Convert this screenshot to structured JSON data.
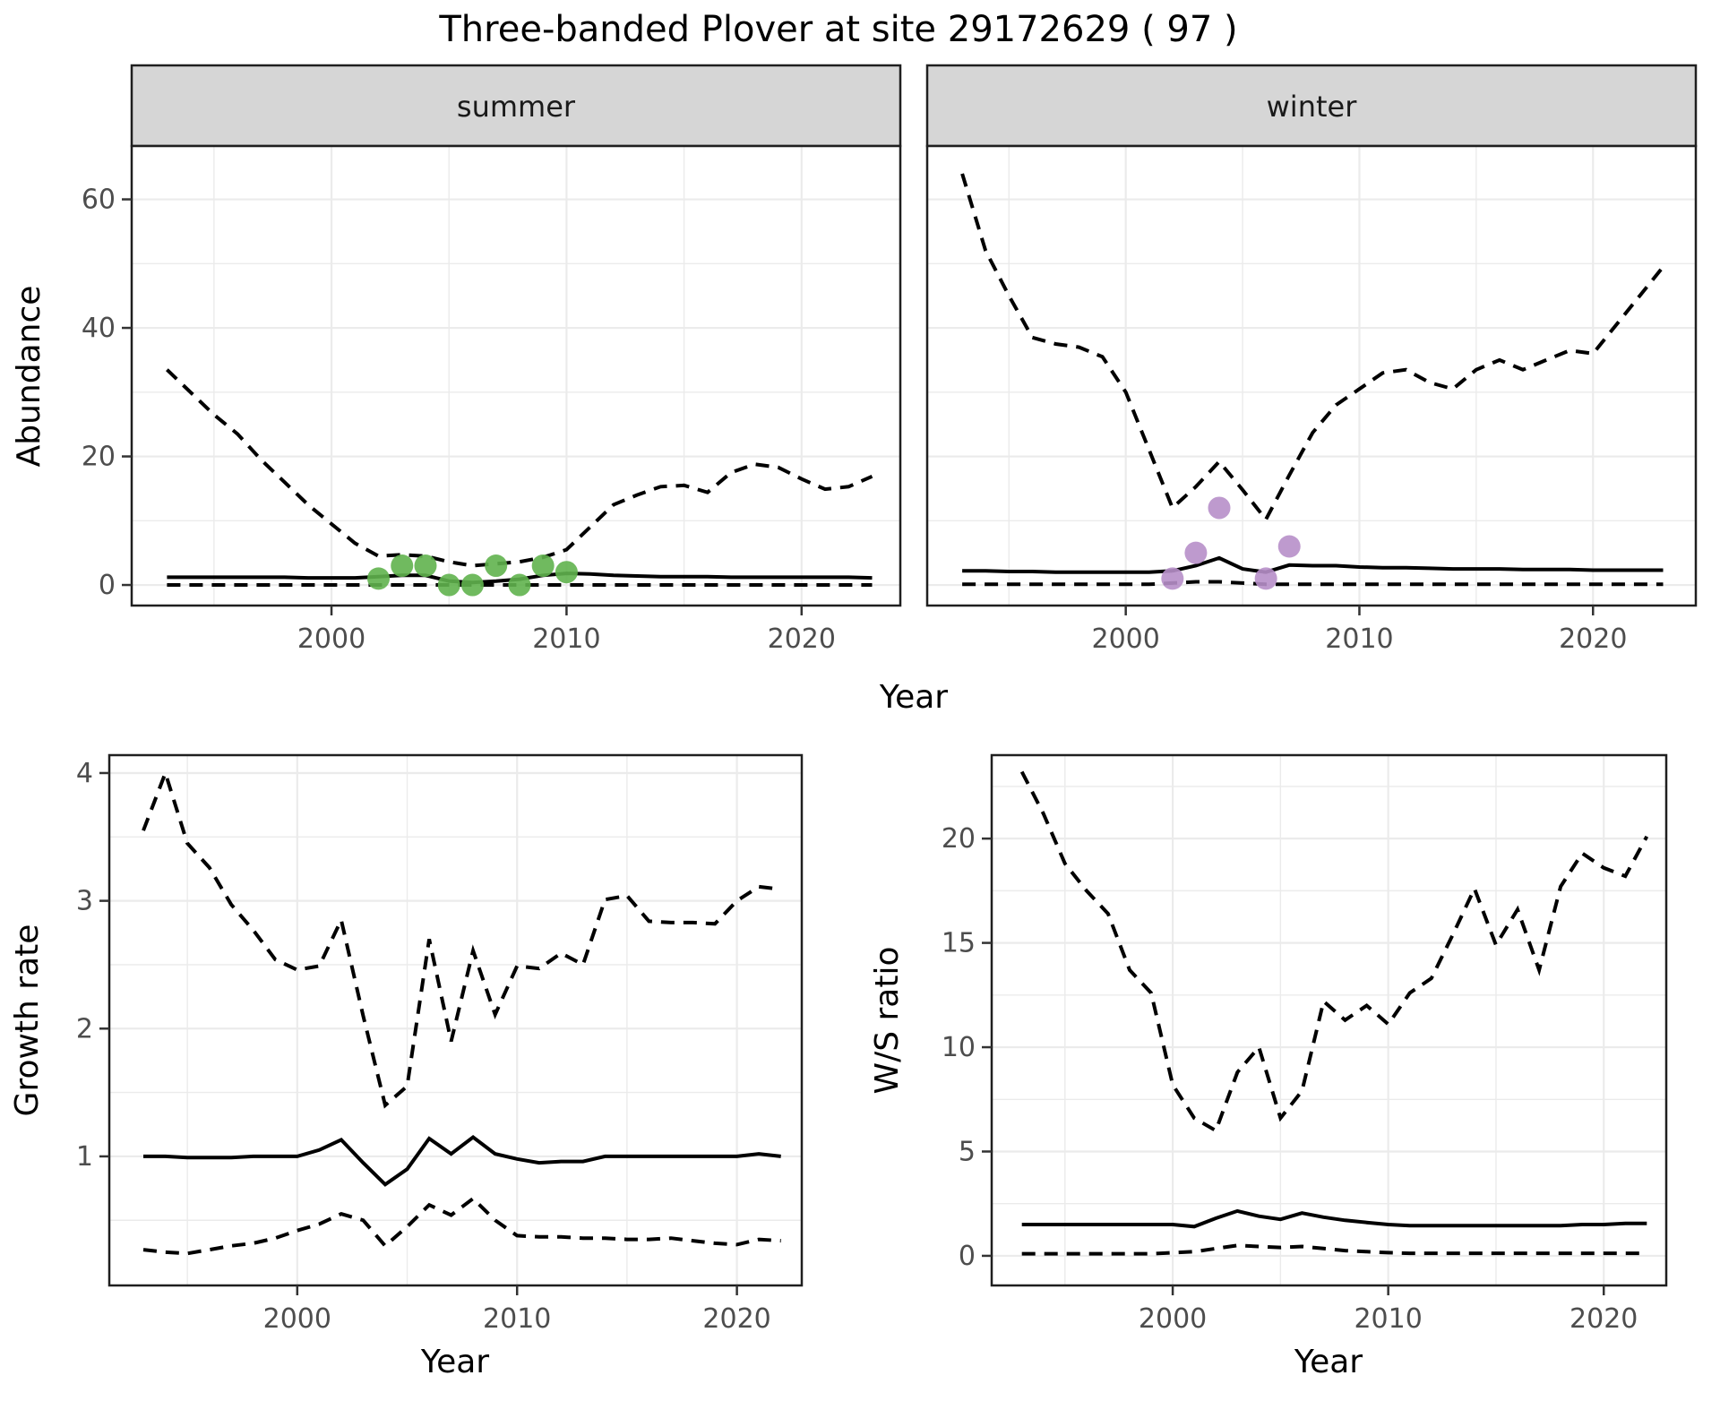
{
  "title": "Three-banded Plover at site 29172629 ( 97 )",
  "facets": {
    "summer_label": "summer",
    "winter_label": "winter"
  },
  "axis_titles": {
    "abundance": "Abundance",
    "year": "Year",
    "growth_rate": "Growth rate",
    "ws_ratio": "W/S ratio"
  },
  "colors": {
    "summer_point": "#61b24e",
    "winter_point": "#b78fc9",
    "line": "#000000",
    "grid": "#ebebeb",
    "strip_bg": "#d6d6d6",
    "strip_border": "#1f1f1f",
    "panel_border": "#1f1f1f",
    "axis_text": "#4d4d4d",
    "tick_mark": "#333333"
  },
  "chart_data": [
    {
      "id": "abundance-summer",
      "type": "line",
      "facet": "summer",
      "xlabel": "Year",
      "ylabel": "Abundance",
      "x": [
        1993,
        1994,
        1995,
        1996,
        1997,
        1998,
        1999,
        2000,
        2001,
        2002,
        2003,
        2004,
        2005,
        2006,
        2007,
        2008,
        2009,
        2010,
        2011,
        2012,
        2013,
        2014,
        2015,
        2016,
        2017,
        2018,
        2019,
        2020,
        2021,
        2022,
        2023
      ],
      "series": [
        {
          "name": "upper_95ci",
          "style": "dashed",
          "values": [
            33.5,
            30,
            26.5,
            23.5,
            19.5,
            16,
            12.5,
            9.5,
            6.5,
            4.5,
            4.7,
            4.5,
            3.6,
            3.0,
            3.3,
            3.6,
            4.3,
            5.5,
            9,
            12.5,
            14,
            15.3,
            15.5,
            14.4,
            17.5,
            18.8,
            18.3,
            16.5,
            14.9,
            15.3,
            16.9
          ]
        },
        {
          "name": "median",
          "style": "solid",
          "values": [
            1.2,
            1.2,
            1.2,
            1.2,
            1.2,
            1.2,
            1.1,
            1.1,
            1.1,
            1.3,
            1.5,
            1.5,
            0.6,
            0.4,
            0.6,
            0.9,
            1.5,
            1.8,
            1.7,
            1.5,
            1.4,
            1.3,
            1.3,
            1.3,
            1.2,
            1.2,
            1.2,
            1.2,
            1.2,
            1.2,
            1.1
          ]
        },
        {
          "name": "lower_95ci",
          "style": "dashed",
          "values": [
            0,
            0,
            0,
            0,
            0,
            0,
            0,
            0,
            0,
            0,
            0,
            0,
            0,
            0,
            0,
            0,
            0,
            0,
            0,
            0,
            0,
            0,
            0,
            0,
            0,
            0,
            0,
            0,
            0,
            0,
            0
          ]
        }
      ],
      "points": {
        "name": "observed-counts-summer",
        "color_key": "summer_point",
        "data": [
          [
            2002,
            1
          ],
          [
            2003,
            3
          ],
          [
            2004,
            3
          ],
          [
            2005,
            0
          ],
          [
            2006,
            0
          ],
          [
            2007,
            3
          ],
          [
            2008,
            0
          ],
          [
            2009,
            3
          ],
          [
            2010,
            2
          ]
        ]
      },
      "xlim": [
        1991.5,
        2024.2
      ],
      "ylim": [
        -3.2,
        68.3
      ],
      "xticks": [
        2000,
        2010,
        2020
      ],
      "xtick_labels": [
        "2000",
        "2010",
        "2020"
      ],
      "xminor": [
        1995,
        2005,
        2015
      ],
      "yticks": [
        0,
        20,
        40,
        60
      ],
      "ytick_labels": [
        "0",
        "20",
        "40",
        "60"
      ],
      "yminor": [
        10,
        30,
        50
      ],
      "show_y_tick_labels": true
    },
    {
      "id": "abundance-winter",
      "type": "line",
      "facet": "winter",
      "xlabel": "Year",
      "ylabel": "Abundance",
      "x": [
        1993,
        1994,
        1995,
        1996,
        1997,
        1998,
        1999,
        2000,
        2001,
        2002,
        2003,
        2004,
        2005,
        2006,
        2007,
        2008,
        2009,
        2010,
        2011,
        2012,
        2013,
        2014,
        2015,
        2016,
        2017,
        2018,
        2019,
        2020,
        2021,
        2022,
        2023
      ],
      "series": [
        {
          "name": "upper_95ci",
          "style": "dashed",
          "values": [
            64,
            52,
            45,
            38.5,
            37.5,
            37,
            35.5,
            30,
            21,
            12,
            15.3,
            19.2,
            14.8,
            10.2,
            17.1,
            23.7,
            28,
            30.5,
            33,
            33.5,
            31.5,
            30.5,
            33.5,
            35,
            33.5,
            35,
            36.5,
            36,
            40.5,
            45,
            49.5
          ]
        },
        {
          "name": "median",
          "style": "solid",
          "values": [
            2.2,
            2.2,
            2.1,
            2.1,
            2.0,
            2.0,
            2.0,
            2.0,
            2.0,
            2.2,
            3.0,
            4.2,
            2.5,
            2.0,
            3.1,
            3.0,
            3.0,
            2.8,
            2.7,
            2.7,
            2.6,
            2.5,
            2.5,
            2.5,
            2.4,
            2.4,
            2.4,
            2.3,
            2.3,
            2.3,
            2.3
          ]
        },
        {
          "name": "lower_95ci",
          "style": "dashed",
          "values": [
            0.1,
            0.1,
            0.1,
            0.1,
            0.1,
            0.1,
            0.1,
            0.1,
            0.1,
            0.3,
            0.5,
            0.5,
            0.3,
            0.1,
            0.1,
            0.1,
            0.1,
            0.1,
            0.1,
            0.1,
            0.1,
            0.1,
            0.1,
            0.1,
            0.1,
            0.1,
            0.1,
            0.1,
            0.1,
            0.1,
            0.1
          ]
        }
      ],
      "points": {
        "name": "observed-counts-winter",
        "color_key": "winter_point",
        "data": [
          [
            2002,
            1
          ],
          [
            2003,
            5
          ],
          [
            2004,
            12
          ],
          [
            2006,
            1
          ],
          [
            2007,
            6
          ]
        ]
      },
      "xlim": [
        1991.5,
        2024.4
      ],
      "ylim": [
        -3.2,
        68.3
      ],
      "xticks": [
        2000,
        2010,
        2020
      ],
      "xtick_labels": [
        "2000",
        "2010",
        "2020"
      ],
      "xminor": [
        1995,
        2005,
        2015
      ],
      "yticks": [
        0,
        20,
        40,
        60
      ],
      "ytick_labels": [
        "0",
        "20",
        "40",
        "60"
      ],
      "yminor": [
        10,
        30,
        50
      ],
      "show_y_tick_labels": false
    },
    {
      "id": "growth-rate",
      "type": "line",
      "facet": null,
      "xlabel": "Year",
      "ylabel": "Growth rate",
      "x": [
        1993,
        1994,
        1995,
        1996,
        1997,
        1998,
        1999,
        2000,
        2001,
        2002,
        2003,
        2004,
        2005,
        2006,
        2007,
        2008,
        2009,
        2010,
        2011,
        2012,
        2013,
        2014,
        2015,
        2016,
        2017,
        2018,
        2019,
        2020,
        2021,
        2022
      ],
      "series": [
        {
          "name": "upper_95ci",
          "style": "dashed",
          "values": [
            3.55,
            4.0,
            3.45,
            3.26,
            2.97,
            2.77,
            2.54,
            2.46,
            2.49,
            2.85,
            2.1,
            1.4,
            1.55,
            2.7,
            1.9,
            2.61,
            2.11,
            2.49,
            2.47,
            2.59,
            2.5,
            3.01,
            3.04,
            2.84,
            2.83,
            2.83,
            2.82,
            3.0,
            3.11,
            3.09
          ]
        },
        {
          "name": "median",
          "style": "solid",
          "values": [
            1.0,
            1.0,
            0.99,
            0.99,
            0.99,
            1.0,
            1.0,
            1.0,
            1.05,
            1.13,
            0.95,
            0.78,
            0.9,
            1.14,
            1.02,
            1.15,
            1.02,
            0.98,
            0.95,
            0.96,
            0.96,
            1.0,
            1.0,
            1.0,
            1.0,
            1.0,
            1.0,
            1.0,
            1.02,
            1.0
          ]
        },
        {
          "name": "lower_95ci",
          "style": "dashed",
          "values": [
            0.27,
            0.25,
            0.24,
            0.27,
            0.3,
            0.32,
            0.36,
            0.42,
            0.47,
            0.55,
            0.5,
            0.3,
            0.45,
            0.62,
            0.54,
            0.67,
            0.5,
            0.38,
            0.37,
            0.37,
            0.36,
            0.36,
            0.35,
            0.35,
            0.36,
            0.34,
            0.32,
            0.31,
            0.35,
            0.34
          ]
        }
      ],
      "points": null,
      "xlim": [
        1991.45,
        2022.95
      ],
      "ylim": [
        -0.01,
        4.14
      ],
      "xticks": [
        2000,
        2010,
        2020
      ],
      "xtick_labels": [
        "2000",
        "2010",
        "2020"
      ],
      "xminor": [
        1995,
        2005,
        2015
      ],
      "yticks": [
        1,
        2,
        3,
        4
      ],
      "ytick_labels": [
        "1",
        "2",
        "3",
        "4"
      ],
      "yminor": [
        0.5,
        1.5,
        2.5,
        3.5
      ],
      "show_y_tick_labels": true
    },
    {
      "id": "ws-ratio",
      "type": "line",
      "facet": null,
      "xlabel": "Year",
      "ylabel": "W/S ratio",
      "x": [
        1993,
        1994,
        1995,
        1996,
        1997,
        1998,
        1999,
        2000,
        2001,
        2002,
        2003,
        2004,
        2005,
        2006,
        2007,
        2008,
        2009,
        2010,
        2011,
        2012,
        2013,
        2014,
        2015,
        2016,
        2017,
        2018,
        2019,
        2020,
        2021,
        2022
      ],
      "series": [
        {
          "name": "upper_95ci",
          "style": "dashed",
          "values": [
            23.2,
            21.2,
            18.8,
            17.5,
            16.4,
            13.7,
            12.6,
            8.2,
            6.6,
            6.0,
            8.8,
            10.0,
            6.6,
            7.9,
            12.2,
            11.3,
            12.0,
            11.1,
            12.6,
            13.3,
            15.4,
            17.6,
            14.9,
            16.6,
            13.7,
            17.7,
            19.3,
            18.6,
            18.2,
            20.1
          ]
        },
        {
          "name": "median",
          "style": "solid",
          "values": [
            1.5,
            1.5,
            1.5,
            1.5,
            1.5,
            1.5,
            1.5,
            1.5,
            1.4,
            1.8,
            2.15,
            1.9,
            1.75,
            2.05,
            1.85,
            1.7,
            1.6,
            1.5,
            1.45,
            1.45,
            1.45,
            1.45,
            1.45,
            1.45,
            1.45,
            1.45,
            1.5,
            1.5,
            1.55,
            1.55
          ]
        },
        {
          "name": "lower_95ci",
          "style": "dashed",
          "values": [
            0.1,
            0.1,
            0.1,
            0.1,
            0.1,
            0.1,
            0.1,
            0.15,
            0.2,
            0.35,
            0.5,
            0.45,
            0.4,
            0.45,
            0.35,
            0.25,
            0.2,
            0.15,
            0.12,
            0.12,
            0.12,
            0.12,
            0.12,
            0.12,
            0.12,
            0.12,
            0.12,
            0.12,
            0.12,
            0.12
          ]
        }
      ],
      "points": null,
      "xlim": [
        1991.6,
        2022.9
      ],
      "ylim": [
        -1.42,
        24.0
      ],
      "xticks": [
        2000,
        2010,
        2020
      ],
      "xtick_labels": [
        "2000",
        "2010",
        "2020"
      ],
      "xminor": [
        1995,
        2005,
        2015
      ],
      "yticks": [
        0,
        5,
        10,
        15,
        20
      ],
      "ytick_labels": [
        "0",
        "5",
        "10",
        "15",
        "20"
      ],
      "yminor": [
        2.5,
        7.5,
        12.5,
        17.5,
        22.5
      ],
      "show_y_tick_labels": true
    }
  ]
}
